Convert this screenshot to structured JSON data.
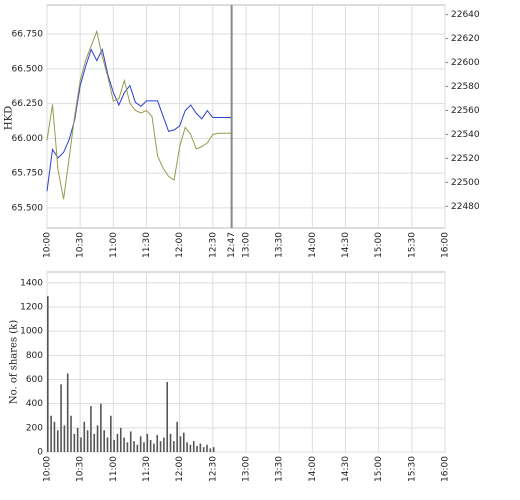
{
  "chart_data": [
    {
      "type": "line",
      "y_label": "HKD",
      "x": [
        "10:00",
        "10:05",
        "10:10",
        "10:15",
        "10:20",
        "10:25",
        "10:30",
        "10:35",
        "10:40",
        "10:45",
        "10:50",
        "10:55",
        "11:00",
        "11:05",
        "11:10",
        "11:15",
        "11:20",
        "11:25",
        "11:30",
        "11:35",
        "11:40",
        "11:45",
        "11:50",
        "11:55",
        "12:00",
        "12:05",
        "12:10",
        "12:15",
        "12:20",
        "12:25",
        "12:30",
        "12:35",
        "12:40",
        "12:45",
        "12:47"
      ],
      "series": [
        {
          "color": "#2b3fd0",
          "axis": "y",
          "values": [
            65.62,
            65.92,
            65.86,
            65.9,
            65.99,
            66.13,
            66.38,
            66.52,
            66.64,
            66.56,
            66.64,
            66.46,
            66.33,
            66.24,
            66.33,
            66.38,
            66.26,
            66.23,
            66.27,
            66.27,
            66.27,
            66.16,
            66.05,
            66.06,
            66.09,
            66.2,
            66.24,
            66.18,
            66.14,
            66.2,
            66.15,
            66.15,
            66.15,
            66.15,
            66.15
          ]
        },
        {
          "color": "#9a9a50",
          "axis": "y2",
          "values": [
            22535,
            22565,
            22510,
            22486,
            22520,
            22555,
            22585,
            22602,
            22614,
            22626,
            22605,
            22588,
            22568,
            22570,
            22585,
            22566,
            22560,
            22558,
            22560,
            22555,
            22522,
            22512,
            22505,
            22502,
            22530,
            22546,
            22540,
            22528,
            22530,
            22533,
            22540,
            22541,
            22541,
            22541,
            22541
          ]
        }
      ],
      "xlim": [
        "10:00",
        "16:00"
      ],
      "xticks": [
        "10:00",
        "10:30",
        "11:00",
        "11:30",
        "12:00",
        "12:30",
        "12:47",
        "13:00",
        "13:30",
        "14:00",
        "14:30",
        "15:00",
        "15:30",
        "16:00"
      ],
      "ylim": [
        65.355,
        66.96
      ],
      "yticks": [
        {
          "value": 65.5,
          "label": "65.500"
        },
        {
          "value": 65.75,
          "label": "65.750"
        },
        {
          "value": 66,
          "label": "66.000"
        },
        {
          "value": 66.25,
          "label": "66.250"
        },
        {
          "value": 66.5,
          "label": "66.500"
        },
        {
          "value": 66.75,
          "label": "66.750"
        }
      ],
      "y2lim": [
        22462,
        22648
      ],
      "y2ticks": [
        22480,
        22500,
        22520,
        22540,
        22560,
        22580,
        22600,
        22620,
        22640
      ],
      "grid": true
    },
    {
      "type": "bar",
      "y_label": "No. of shares (k)",
      "x": [
        "10:00",
        "10:03",
        "10:06",
        "10:09",
        "10:12",
        "10:15",
        "10:18",
        "10:21",
        "10:24",
        "10:27",
        "10:30",
        "10:33",
        "10:36",
        "10:39",
        "10:42",
        "10:45",
        "10:48",
        "10:51",
        "10:54",
        "10:57",
        "11:00",
        "11:03",
        "11:06",
        "11:09",
        "11:12",
        "11:15",
        "11:18",
        "11:21",
        "11:24",
        "11:27",
        "11:30",
        "11:33",
        "11:36",
        "11:39",
        "11:42",
        "11:45",
        "11:48",
        "11:51",
        "11:54",
        "11:57",
        "12:00",
        "12:03",
        "12:06",
        "12:09",
        "12:12",
        "12:15",
        "12:18",
        "12:21",
        "12:24",
        "12:27",
        "12:30"
      ],
      "values": [
        1290,
        300,
        250,
        180,
        560,
        220,
        650,
        300,
        150,
        200,
        120,
        250,
        180,
        380,
        150,
        220,
        400,
        180,
        120,
        300,
        100,
        150,
        200,
        120,
        80,
        170,
        90,
        60,
        130,
        80,
        150,
        100,
        70,
        140,
        90,
        120,
        580,
        150,
        90,
        250,
        130,
        160,
        80,
        60,
        90,
        50,
        70,
        40,
        60,
        30,
        40
      ],
      "color": "#555555",
      "xlim": [
        "10:00",
        "16:00"
      ],
      "xticks": [
        "10:00",
        "10:30",
        "11:00",
        "11:30",
        "12:00",
        "12:30",
        "13:00",
        "13:30",
        "14:00",
        "14:30",
        "15:00",
        "15:30",
        "16:00"
      ],
      "ylim": [
        0,
        1490
      ],
      "yticks": [
        0,
        200,
        400,
        600,
        800,
        1000,
        1200,
        1400
      ],
      "grid": true
    }
  ]
}
